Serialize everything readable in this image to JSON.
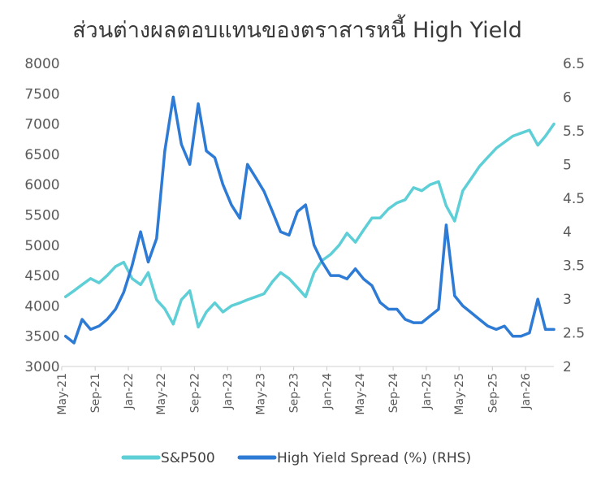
{
  "chart_data": {
    "type": "line",
    "title": "ส่วนต่างผลตอบแทนของตราสารหนี้ High Yield",
    "xlabel": "",
    "ylabel": "",
    "y2label": "",
    "x_ticks": [
      "May-21",
      "Sep-21",
      "Jan-22",
      "May-22",
      "Sep-22",
      "Jan-23",
      "May-23",
      "Sep-23",
      "Jan-24",
      "May-24",
      "Sep-24",
      "Jan-25",
      "May-25",
      "Sep-25",
      "Jan-26"
    ],
    "x_range": [
      "2021-05-01",
      "2026-04-15"
    ],
    "ylim": [
      3000,
      8000
    ],
    "y_ticks": [
      "3000",
      "3500",
      "4000",
      "4500",
      "5000",
      "5500",
      "6000",
      "6500",
      "7000",
      "7500",
      "8000"
    ],
    "y2lim": [
      2,
      6.5
    ],
    "y2_ticks": [
      "2",
      "2.5",
      "3",
      "3.5",
      "4",
      "4.5",
      "5",
      "5.5",
      "6",
      "6.5"
    ],
    "legend": "bottom",
    "grid": false,
    "series": [
      {
        "name": "S&P500",
        "axis": "left",
        "color": "#5ecfd6",
        "x": [
          "2021-05",
          "2021-06",
          "2021-07",
          "2021-08",
          "2021-09",
          "2021-10",
          "2021-11",
          "2021-12",
          "2022-01",
          "2022-02",
          "2022-03",
          "2022-04",
          "2022-05",
          "2022-06",
          "2022-07",
          "2022-08",
          "2022-09",
          "2022-10",
          "2022-11",
          "2022-12",
          "2023-01",
          "2023-02",
          "2023-03",
          "2023-04",
          "2023-05",
          "2023-06",
          "2023-07",
          "2023-08",
          "2023-09",
          "2023-10",
          "2023-11",
          "2023-12",
          "2024-01",
          "2024-02",
          "2024-03",
          "2024-04",
          "2024-05",
          "2024-06",
          "2024-07",
          "2024-08",
          "2024-09",
          "2024-10",
          "2024-11",
          "2024-12",
          "2025-01",
          "2025-02",
          "2025-03",
          "2025-04",
          "2025-05",
          "2025-06",
          "2025-07",
          "2025-08",
          "2025-09",
          "2025-10",
          "2025-11",
          "2025-12",
          "2026-01",
          "2026-02",
          "2026-03",
          "2026-04"
        ],
        "values": [
          4150,
          4250,
          4350,
          4450,
          4380,
          4500,
          4650,
          4720,
          4450,
          4350,
          4550,
          4100,
          3950,
          3700,
          4100,
          4250,
          3650,
          3900,
          4050,
          3900,
          4000,
          4050,
          4100,
          4150,
          4200,
          4400,
          4550,
          4450,
          4300,
          4150,
          4550,
          4750,
          4850,
          5000,
          5200,
          5050,
          5250,
          5450,
          5450,
          5600,
          5700,
          5750,
          5950,
          5900,
          6000,
          6050,
          5650,
          5400,
          5900,
          6100,
          6300,
          6450,
          6600,
          6700,
          6800,
          6850,
          6900,
          6650,
          6800,
          7000
        ]
      },
      {
        "name": "High Yield Spread (%) (RHS)",
        "axis": "right",
        "color": "#2e7bd6",
        "x": [
          "2021-05",
          "2021-06",
          "2021-07",
          "2021-08",
          "2021-09",
          "2021-10",
          "2021-11",
          "2021-12",
          "2022-01",
          "2022-02",
          "2022-03",
          "2022-04",
          "2022-05",
          "2022-06",
          "2022-07",
          "2022-08",
          "2022-09",
          "2022-10",
          "2022-11",
          "2022-12",
          "2023-01",
          "2023-02",
          "2023-03",
          "2023-04",
          "2023-05",
          "2023-06",
          "2023-07",
          "2023-08",
          "2023-09",
          "2023-10",
          "2023-11",
          "2023-12",
          "2024-01",
          "2024-02",
          "2024-03",
          "2024-04",
          "2024-05",
          "2024-06",
          "2024-07",
          "2024-08",
          "2024-09",
          "2024-10",
          "2024-11",
          "2024-12",
          "2025-01",
          "2025-02",
          "2025-03",
          "2025-04",
          "2025-05",
          "2025-06",
          "2025-07",
          "2025-08",
          "2025-09",
          "2025-10",
          "2025-11",
          "2025-12",
          "2026-01",
          "2026-02",
          "2026-03",
          "2026-04"
        ],
        "values": [
          2.45,
          2.35,
          2.7,
          2.55,
          2.6,
          2.7,
          2.85,
          3.1,
          3.5,
          4.0,
          3.55,
          3.9,
          5.2,
          6.0,
          5.3,
          5.0,
          5.9,
          5.2,
          5.1,
          4.7,
          4.4,
          4.2,
          5.0,
          4.8,
          4.6,
          4.3,
          4.0,
          3.95,
          4.3,
          4.4,
          3.8,
          3.55,
          3.35,
          3.35,
          3.3,
          3.45,
          3.3,
          3.2,
          2.95,
          2.85,
          2.85,
          2.7,
          2.65,
          2.65,
          2.75,
          2.85,
          4.1,
          3.05,
          2.9,
          2.8,
          2.7,
          2.6,
          2.55,
          2.6,
          2.45,
          2.45,
          2.5,
          3.0,
          2.55,
          2.55
        ]
      }
    ]
  }
}
